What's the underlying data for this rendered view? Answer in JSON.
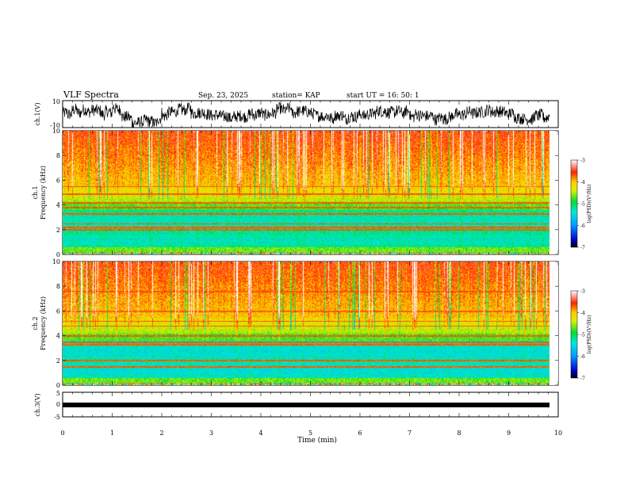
{
  "header": {
    "title": "VLF Spectra",
    "date": "Sep. 23, 2025",
    "station": "station= KAP",
    "start": "start  UT =   16: 50: 1"
  },
  "chart_data": [
    {
      "name": "ch1-waveform",
      "type": "line",
      "ylabel": "ch.1(V)",
      "ylim": [
        -10,
        10
      ],
      "yticks": [
        "10",
        "-10"
      ],
      "x_range_min": [
        0,
        9.83
      ],
      "note": "dense broadband time-series trace"
    },
    {
      "name": "ch1-spectrogram",
      "type": "heatmap",
      "ylabel_line1": "ch.1",
      "ylabel_line2": "Frequency  (kHz)",
      "ylim": [
        0,
        10
      ],
      "yticks": [
        "0",
        "2",
        "4",
        "6",
        "8",
        "10"
      ],
      "colorbar": {
        "label": "log(PSD)(V²/Hz)",
        "ticks": [
          "-3",
          "-4",
          "-5",
          "-6",
          "-7"
        ],
        "range": [
          -7,
          -3
        ]
      },
      "bands_khz": [
        2.0,
        2.2,
        2.5,
        3.3,
        3.8,
        4.2,
        4.9,
        5.5
      ]
    },
    {
      "name": "ch2-spectrogram",
      "type": "heatmap",
      "ylabel_line1": "ch.2",
      "ylabel_line2": "Frequency  (kHz)",
      "ylim": [
        0,
        10
      ],
      "yticks": [
        "0",
        "2",
        "4",
        "6",
        "8",
        "10"
      ],
      "colorbar": {
        "label": "log(PSD)(V²/Hz)",
        "ticks": [
          "-3",
          "-4",
          "-5",
          "-6",
          "-7"
        ],
        "range": [
          -7,
          -3
        ]
      },
      "bands_khz": [
        1.5,
        2.0,
        3.3,
        3.5,
        4.0,
        4.8,
        5.2,
        6.0,
        7.6
      ]
    },
    {
      "name": "ch3-waveform",
      "type": "line",
      "ylabel": "ch.3(V)",
      "ylim": [
        -5,
        5
      ],
      "yticks": [
        "5",
        "0",
        "-5"
      ],
      "constant_value": 0
    }
  ],
  "xaxis": {
    "label": "Time  (min)",
    "ticks": [
      "0",
      "1",
      "2",
      "3",
      "4",
      "5",
      "6",
      "7",
      "8",
      "9",
      "10"
    ],
    "range": [
      0,
      10
    ],
    "data_end": 9.83
  }
}
